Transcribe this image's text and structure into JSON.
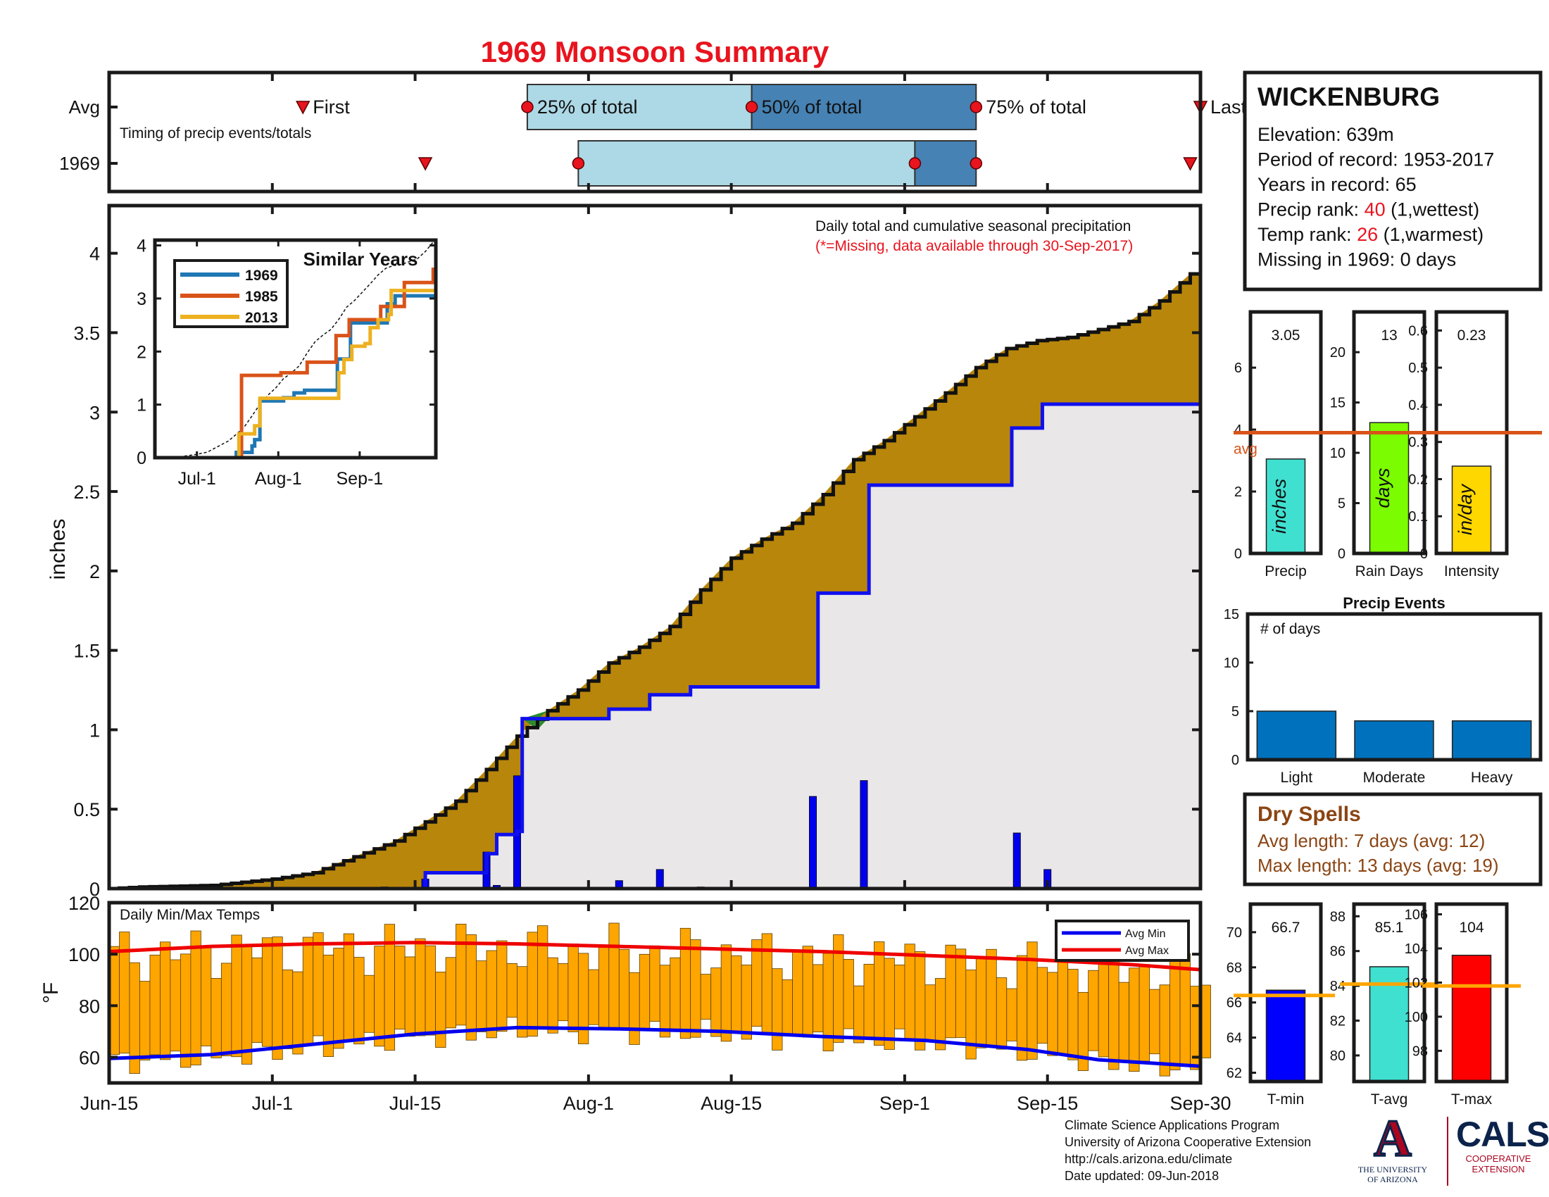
{
  "chart_data": {
    "type": "area",
    "title": "1969 Monsoon Summary",
    "timing": {
      "caption": "Timing of precip events/totals",
      "row_labels": [
        "Avg",
        "1969"
      ],
      "avg_labels": [
        "First",
        "25% of total",
        "50% of total",
        "75% of total",
        "Last"
      ],
      "avg_days": {
        "first": 19,
        "p25": 41,
        "p50": 63,
        "p75": 85,
        "last": 107
      },
      "year_days": {
        "first": 31,
        "p25": 46,
        "p50": 79,
        "p75": 85,
        "last": 106
      }
    },
    "precip": {
      "ylabel": "inches",
      "note": "Daily total and cumulative seasonal precipitation",
      "missing_note": "(*=Missing, data available through 30-Sep-2017)",
      "ylim": [
        0,
        4.3
      ],
      "yticks": [
        0,
        0.5,
        1,
        1.5,
        2,
        2.5,
        3,
        3.5,
        4
      ],
      "xticks": [
        "Jun-15",
        "Jul-1",
        "Jul-15",
        "Aug-1",
        "Aug-15",
        "Sep-1",
        "Sep-15",
        "Sep-30"
      ],
      "xtick_days": [
        0,
        16,
        30,
        47,
        61,
        78,
        92,
        107
      ],
      "avg_cumulative": [
        [
          0,
          0
        ],
        [
          3,
          0.01
        ],
        [
          10,
          0.02
        ],
        [
          16,
          0.06
        ],
        [
          20,
          0.1
        ],
        [
          24,
          0.2
        ],
        [
          28,
          0.3
        ],
        [
          31,
          0.42
        ],
        [
          34,
          0.55
        ],
        [
          37,
          0.75
        ],
        [
          40,
          0.96
        ],
        [
          43,
          1.12
        ],
        [
          46,
          1.25
        ],
        [
          49,
          1.42
        ],
        [
          52,
          1.52
        ],
        [
          55,
          1.65
        ],
        [
          58,
          1.88
        ],
        [
          61,
          2.08
        ],
        [
          64,
          2.2
        ],
        [
          67,
          2.3
        ],
        [
          70,
          2.48
        ],
        [
          73,
          2.7
        ],
        [
          76,
          2.82
        ],
        [
          79,
          2.97
        ],
        [
          82,
          3.12
        ],
        [
          85,
          3.28
        ],
        [
          88,
          3.4
        ],
        [
          91,
          3.45
        ],
        [
          94,
          3.47
        ],
        [
          97,
          3.52
        ],
        [
          100,
          3.57
        ],
        [
          103,
          3.7
        ],
        [
          106,
          3.87
        ],
        [
          107,
          3.88
        ]
      ],
      "year_cumulative": [
        [
          0,
          0
        ],
        [
          27,
          0
        ],
        [
          31,
          0.1
        ],
        [
          37,
          0.22
        ],
        [
          38,
          0.34
        ],
        [
          40,
          0.36
        ],
        [
          40.5,
          1.07
        ],
        [
          49,
          1.13
        ],
        [
          53,
          1.22
        ],
        [
          57,
          1.27
        ],
        [
          69,
          1.27
        ],
        [
          69.5,
          1.86
        ],
        [
          74,
          1.86
        ],
        [
          74.5,
          2.54
        ],
        [
          88,
          2.54
        ],
        [
          88.5,
          2.9
        ],
        [
          91,
          2.9
        ],
        [
          91.5,
          3.05
        ],
        [
          107,
          3.05
        ]
      ],
      "daily_bars": [
        [
          27,
          0.01
        ],
        [
          31,
          0.06
        ],
        [
          37,
          0.23
        ],
        [
          38,
          0.02
        ],
        [
          40,
          0.71
        ],
        [
          50,
          0.05
        ],
        [
          54,
          0.12
        ],
        [
          58,
          0.01
        ],
        [
          69,
          0.58
        ],
        [
          74,
          0.68
        ],
        [
          89,
          0.35
        ],
        [
          92,
          0.12
        ]
      ]
    },
    "similar_years": {
      "title": "Similar Years",
      "xticks": [
        "Jul-1",
        "Aug-1",
        "Sep-1"
      ],
      "xtick_days": [
        16,
        47,
        78
      ],
      "ylim": [
        0,
        4
      ],
      "yticks": [
        0,
        1,
        2,
        3,
        4
      ],
      "series": [
        {
          "name": "1969",
          "color": "#1f77b4",
          "points": [
            [
              0,
              0
            ],
            [
              28,
              0
            ],
            [
              31,
              0.1
            ],
            [
              37,
              0.22
            ],
            [
              38,
              0.34
            ],
            [
              40,
              1.07
            ],
            [
              49,
              1.13
            ],
            [
              53,
              1.22
            ],
            [
              57,
              1.27
            ],
            [
              69,
              1.27
            ],
            [
              69.5,
              1.86
            ],
            [
              74,
              1.86
            ],
            [
              74.5,
              2.54
            ],
            [
              88,
              2.54
            ],
            [
              88.5,
              2.9
            ],
            [
              91,
              2.9
            ],
            [
              91.5,
              3.05
            ],
            [
              107,
              3.05
            ]
          ]
        },
        {
          "name": "1985",
          "color": "#d95319",
          "points": [
            [
              0,
              0
            ],
            [
              30,
              0
            ],
            [
              33,
              1.55
            ],
            [
              46,
              1.55
            ],
            [
              48,
              1.6
            ],
            [
              55,
              1.6
            ],
            [
              58,
              1.8
            ],
            [
              68,
              1.8
            ],
            [
              69,
              2.3
            ],
            [
              73,
              2.3
            ],
            [
              74,
              2.6
            ],
            [
              84,
              2.6
            ],
            [
              86,
              2.85
            ],
            [
              94,
              2.85
            ],
            [
              95,
              3.3
            ],
            [
              105,
              3.3
            ],
            [
              106,
              3.55
            ],
            [
              107,
              3.55
            ]
          ]
        },
        {
          "name": "2013",
          "color": "#edb120",
          "points": [
            [
              0,
              0
            ],
            [
              30,
              0
            ],
            [
              32,
              0.45
            ],
            [
              38,
              0.6
            ],
            [
              40,
              1.12
            ],
            [
              55,
              1.12
            ],
            [
              68,
              1.12
            ],
            [
              70,
              1.6
            ],
            [
              72,
              1.85
            ],
            [
              75,
              2.1
            ],
            [
              80,
              2.15
            ],
            [
              82,
              2.45
            ],
            [
              85,
              2.6
            ],
            [
              89,
              2.7
            ],
            [
              90,
              3.15
            ],
            [
              107,
              3.15
            ]
          ]
        }
      ]
    },
    "temps": {
      "caption": "Daily Min/Max Temps",
      "ylabel": "°F",
      "ylim": [
        50,
        120
      ],
      "yticks": [
        60,
        80,
        100,
        120
      ],
      "legend": [
        "Avg Min",
        "Avg Max"
      ],
      "avg_min": [
        [
          0,
          59.5
        ],
        [
          10,
          61
        ],
        [
          20,
          65
        ],
        [
          30,
          69
        ],
        [
          40,
          71.5
        ],
        [
          50,
          71
        ],
        [
          60,
          70
        ],
        [
          70,
          68
        ],
        [
          80,
          66.5
        ],
        [
          90,
          63
        ],
        [
          97,
          59
        ],
        [
          107,
          56.5
        ]
      ],
      "avg_max": [
        [
          0,
          101
        ],
        [
          10,
          103
        ],
        [
          20,
          104
        ],
        [
          30,
          104.5
        ],
        [
          40,
          104
        ],
        [
          50,
          103
        ],
        [
          60,
          102
        ],
        [
          70,
          101
        ],
        [
          80,
          99.5
        ],
        [
          90,
          98
        ],
        [
          100,
          96
        ],
        [
          107,
          94
        ]
      ]
    },
    "station": {
      "name": "WICKENBURG",
      "lines": [
        {
          "text": "Elevation: 639m"
        },
        {
          "text": "Period of record: 1953-2017"
        },
        {
          "text": "Years in record: 65"
        },
        {
          "pre": "Precip rank: ",
          "value": "40",
          "post": " (1,wettest)"
        },
        {
          "pre": "Temp rank: ",
          "value": "26",
          "post": " (1,warmest)"
        },
        {
          "text": "Missing in 1969: 0 days"
        }
      ]
    },
    "summary_bars": [
      {
        "label": "Precip",
        "value_text": "3.05",
        "value": 3.05,
        "avg": 3.9,
        "avg_label": "avg",
        "unit": "inches",
        "ylim": [
          0,
          7.8
        ],
        "yticks": [
          0,
          2,
          4,
          6
        ],
        "color": "#40e0d0"
      },
      {
        "label": "Rain Days",
        "value_text": "13",
        "value": 13,
        "avg": 12,
        "unit": "days",
        "ylim": [
          0,
          24
        ],
        "yticks": [
          0,
          5,
          10,
          15,
          20
        ],
        "color": "#7cfc00"
      },
      {
        "label": "Intensity",
        "value_text": "0.23",
        "value": 0.235,
        "avg": 0.325,
        "unit": "in/day",
        "ylim": [
          0,
          0.65
        ],
        "yticks": [
          0,
          0.1,
          0.2,
          0.3,
          0.4,
          0.5,
          0.6
        ],
        "color": "#ffd700"
      }
    ],
    "precip_events": {
      "title": "Precip Events",
      "ylabel": "# of days",
      "ylim": [
        0,
        15
      ],
      "yticks": [
        0,
        5,
        10,
        15
      ],
      "categories": [
        "Light",
        "Moderate",
        "Heavy"
      ],
      "values": [
        5,
        4,
        4
      ]
    },
    "dry_spells": {
      "title": "Dry Spells",
      "lines": [
        "Avg length: 7 days (avg: 12)",
        "Max length: 13 days (avg: 19)"
      ]
    },
    "temp_bars": [
      {
        "label": "T-min",
        "value_text": "66.7",
        "value": 66.7,
        "avg": 66.4,
        "ylim": [
          61.5,
          71.6
        ],
        "yticks": [
          62,
          64,
          66,
          68,
          70
        ],
        "color": "#0000ff"
      },
      {
        "label": "T-avg",
        "value_text": "85.1",
        "value": 85.1,
        "avg": 84.1,
        "ylim": [
          78.5,
          88.7
        ],
        "yticks": [
          80,
          82,
          84,
          86,
          88
        ],
        "color": "#40e0d0"
      },
      {
        "label": "T-max",
        "value_text": "104",
        "value": 103.6,
        "avg": 101.8,
        "ylim": [
          96.2,
          106.6
        ],
        "yticks": [
          98,
          100,
          102,
          104,
          106
        ],
        "color": "#ff0000"
      }
    ]
  },
  "credits": {
    "program": "Climate Science Applications Program",
    "org": "University of Arizona Cooperative Extension",
    "url": "http://cals.arizona.edu/climate",
    "updated": " Date updated: 09-Jun-2018"
  },
  "logos": {
    "uni_letter": "A",
    "uni_line1": "THE UNIVERSITY",
    "uni_line2": "OF ARIZONA",
    "cals": "CALS",
    "coop1": "COOPERATIVE",
    "coop2": "EXTENSION"
  }
}
